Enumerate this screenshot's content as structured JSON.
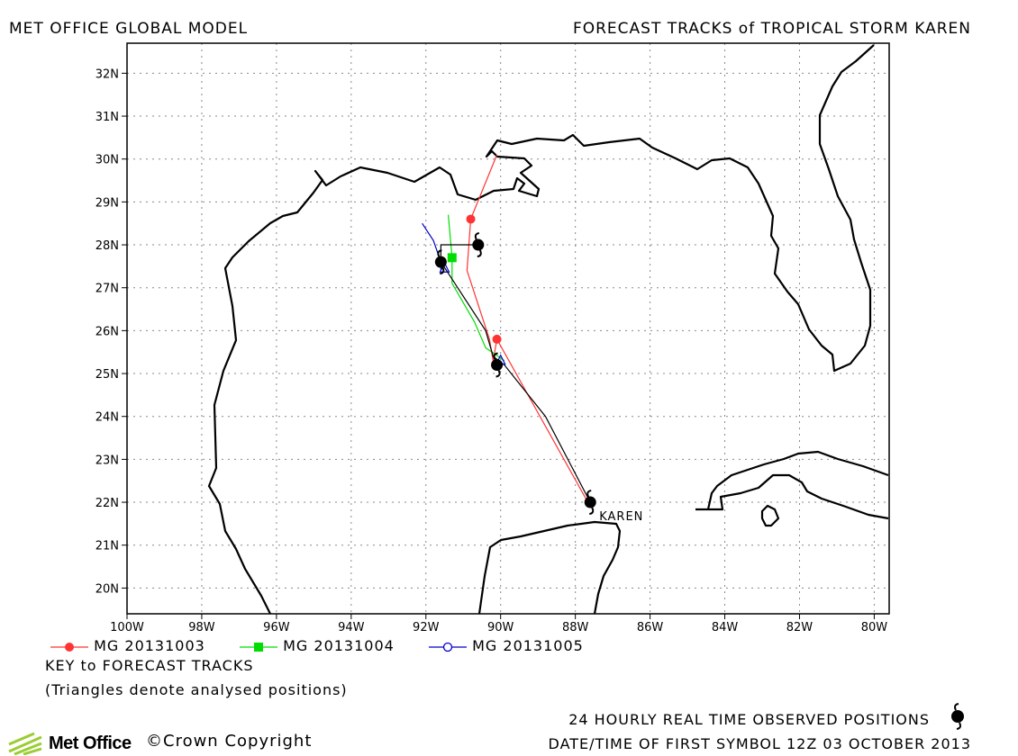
{
  "header": {
    "left_title": "MET OFFICE GLOBAL MODEL",
    "right_title": "FORECAST TRACKS of TROPICAL STORM KAREN"
  },
  "map": {
    "lon_range": [
      -100,
      -79.6
    ],
    "lat_range": [
      19.4,
      32.7
    ],
    "lat_ticks": [
      "20N",
      "21N",
      "22N",
      "23N",
      "24N",
      "25N",
      "26N",
      "27N",
      "28N",
      "29N",
      "30N",
      "31N",
      "32N"
    ],
    "lon_ticks": [
      "100W",
      "98W",
      "96W",
      "94W",
      "92W",
      "90W",
      "88W",
      "86W",
      "84W",
      "82W",
      "80W"
    ],
    "storm_label": "KAREN",
    "grid": "dotted"
  },
  "tracks": [
    {
      "name": "MG 20131003",
      "color": "#ff3333",
      "marker": "filled-circle",
      "points": [
        [
          -87.6,
          21.9
        ],
        [
          -90.1,
          25.8
        ],
        [
          -90.2,
          25.3
        ],
        [
          -90.3,
          25.8
        ],
        [
          -90.9,
          27.4
        ],
        [
          -90.8,
          28.6
        ],
        [
          -90.1,
          30.1
        ]
      ],
      "markers": [
        [
          -90.1,
          25.8
        ],
        [
          -90.8,
          28.6
        ]
      ]
    },
    {
      "name": "MG 20131004",
      "color": "#00dd00",
      "marker": "filled-square",
      "points": [
        [
          -89.9,
          25.3
        ],
        [
          -90.4,
          25.6
        ],
        [
          -90.7,
          26.2
        ],
        [
          -91.3,
          27.1
        ],
        [
          -91.3,
          27.7
        ],
        [
          -91.4,
          28.7
        ]
      ],
      "markers": [
        [
          -91.3,
          27.7
        ]
      ]
    },
    {
      "name": "MG 20131005",
      "color": "#0000cc",
      "marker": "open-circle",
      "points": [
        [
          -91.6,
          27.4
        ],
        [
          -91.6,
          27.6
        ],
        [
          -91.8,
          28.1
        ],
        [
          -92.1,
          28.5
        ]
      ],
      "markers": []
    }
  ],
  "observed_track": {
    "color": "#000000",
    "points": [
      [
        -87.6,
        22.0
      ],
      [
        -88.8,
        24.0
      ],
      [
        -89.9,
        25.2
      ],
      [
        -90.2,
        25.4
      ],
      [
        -90.4,
        26.0
      ],
      [
        -91.6,
        27.6
      ],
      [
        -91.6,
        28.0
      ],
      [
        -90.6,
        28.0
      ]
    ],
    "storm_symbols": [
      [
        -87.6,
        22.0
      ],
      [
        -90.1,
        25.2
      ],
      [
        -91.6,
        27.6
      ],
      [
        -90.6,
        28.0
      ]
    ],
    "triangles": [
      [
        -90.0,
        25.3
      ],
      [
        -91.5,
        27.45
      ]
    ]
  },
  "key": {
    "title": "KEY to FORECAST TRACKS",
    "note": "(Triangles denote analysed positions)"
  },
  "footer": {
    "observed_label": "24 HOURLY REAL TIME OBSERVED POSITIONS",
    "date_label": "DATE/TIME OF FIRST SYMBOL 12Z 03 OCTOBER 2013",
    "logo_text": "Met Office",
    "copyright": "©Crown Copyright"
  }
}
